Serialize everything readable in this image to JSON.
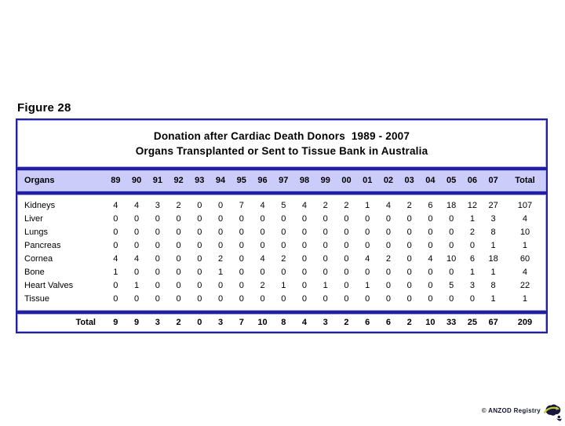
{
  "figure_label": "Figure 28",
  "title": {
    "line1": "Donation after Cardiac Death Donors  1989 - 2007",
    "line2": "Organs Transplanted or Sent to Tissue Bank in Australia"
  },
  "table": {
    "organs_header": "Organs",
    "year_headers": [
      "89",
      "90",
      "91",
      "92",
      "93",
      "94",
      "95",
      "96",
      "97",
      "98",
      "99",
      "00",
      "01",
      "02",
      "03",
      "04",
      "05",
      "06",
      "07"
    ],
    "total_header": "Total",
    "rows": [
      {
        "organ": "Kidneys",
        "values": [
          4,
          4,
          3,
          2,
          0,
          0,
          7,
          4,
          5,
          4,
          2,
          2,
          1,
          4,
          2,
          6,
          18,
          12,
          27
        ],
        "total": 107
      },
      {
        "organ": "Liver",
        "values": [
          0,
          0,
          0,
          0,
          0,
          0,
          0,
          0,
          0,
          0,
          0,
          0,
          0,
          0,
          0,
          0,
          0,
          1,
          3
        ],
        "total": 4
      },
      {
        "organ": "Lungs",
        "values": [
          0,
          0,
          0,
          0,
          0,
          0,
          0,
          0,
          0,
          0,
          0,
          0,
          0,
          0,
          0,
          0,
          0,
          2,
          8
        ],
        "total": 10
      },
      {
        "organ": "Pancreas",
        "values": [
          0,
          0,
          0,
          0,
          0,
          0,
          0,
          0,
          0,
          0,
          0,
          0,
          0,
          0,
          0,
          0,
          0,
          0,
          1
        ],
        "total": 1
      },
      {
        "organ": "Cornea",
        "values": [
          4,
          4,
          0,
          0,
          0,
          2,
          0,
          4,
          2,
          0,
          0,
          0,
          4,
          2,
          0,
          4,
          10,
          6,
          18
        ],
        "total": 60
      },
      {
        "organ": "Bone",
        "values": [
          1,
          0,
          0,
          0,
          0,
          1,
          0,
          0,
          0,
          0,
          0,
          0,
          0,
          0,
          0,
          0,
          0,
          1,
          1
        ],
        "total": 4
      },
      {
        "organ": "Heart Valves",
        "values": [
          0,
          1,
          0,
          0,
          0,
          0,
          0,
          2,
          1,
          0,
          1,
          0,
          1,
          0,
          0,
          0,
          5,
          3,
          8
        ],
        "total": 22
      },
      {
        "organ": "Tissue",
        "values": [
          0,
          0,
          0,
          0,
          0,
          0,
          0,
          0,
          0,
          0,
          0,
          0,
          0,
          0,
          0,
          0,
          0,
          0,
          1
        ],
        "total": 1
      }
    ],
    "total_row": {
      "label": "Total",
      "values": [
        9,
        9,
        3,
        2,
        0,
        3,
        7,
        10,
        8,
        4,
        3,
        2,
        6,
        6,
        2,
        10,
        33,
        25,
        67
      ],
      "total": 209
    }
  },
  "footer": {
    "credit": "© ANZOD Registry",
    "logo": "australia-map-icon"
  },
  "colors": {
    "border_navy": "#2020a0",
    "border_accent": "#a9a9ea",
    "header_bg": "#ccccfa",
    "logo_navy": "#16163f",
    "logo_green": "#c2ce2c"
  }
}
